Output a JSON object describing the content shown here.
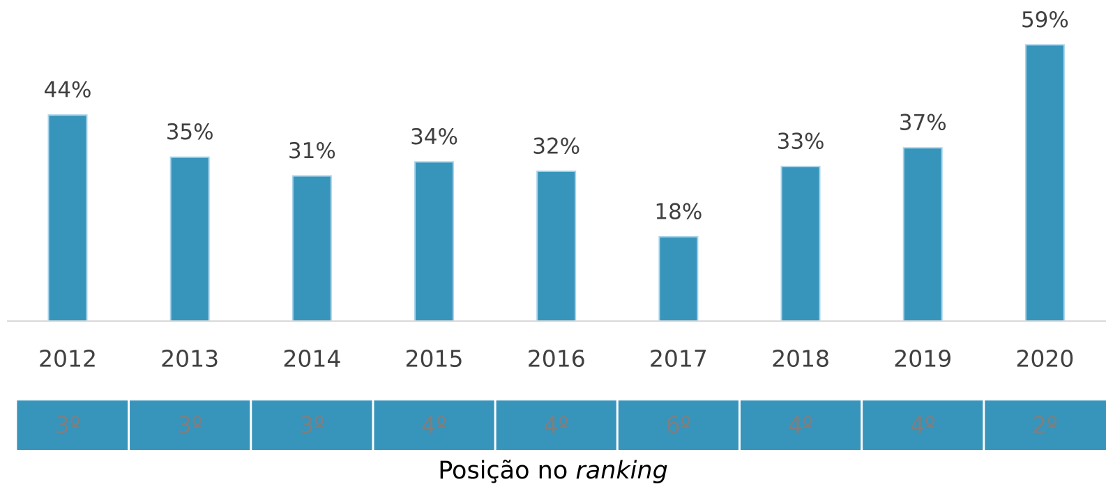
{
  "chart_data": {
    "type": "bar",
    "categories": [
      "2012",
      "2013",
      "2014",
      "2015",
      "2016",
      "2017",
      "2018",
      "2019",
      "2020"
    ],
    "values": [
      44,
      35,
      31,
      34,
      32,
      18,
      33,
      37,
      59
    ],
    "value_labels": [
      "44%",
      "35%",
      "31%",
      "34%",
      "32%",
      "18%",
      "33%",
      "37%",
      "59%"
    ],
    "color": "#3794bb",
    "ylim": [
      0,
      65
    ],
    "grid": false,
    "ranking": {
      "labels": [
        "3º",
        "3º",
        "3º",
        "4º",
        "4º",
        "6º",
        "4º",
        "4º",
        "2º"
      ],
      "caption": "Posição no",
      "caption_italic": "ranking"
    }
  }
}
